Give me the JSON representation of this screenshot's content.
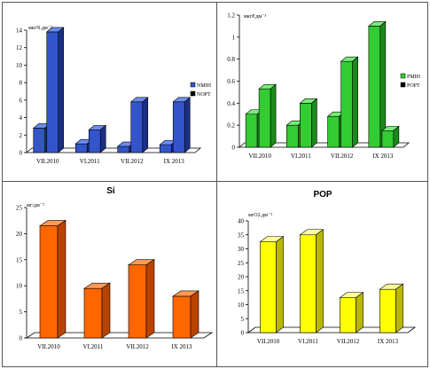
{
  "chart_data": [
    {
      "type": "bar",
      "title": "",
      "unit_label": "мкгN.дм⁻³",
      "categories": [
        "VII.2010",
        "VI.2011",
        "VII.2012",
        "IX 2013"
      ],
      "ylim": [
        0,
        14
      ],
      "yticks": [
        0,
        2,
        4,
        6,
        8,
        10,
        12,
        14
      ],
      "legend_position": "right",
      "series": [
        {
          "name": "NMIH",
          "values": [
            2.8,
            1.0,
            0.7,
            0.9
          ]
        },
        {
          "name": "NOPT",
          "values": [
            13.8,
            2.6,
            5.8,
            5.8
          ]
        }
      ],
      "colors": {
        "front": "#3355cc",
        "top": "#6b8cf0",
        "side": "#1c2f85"
      }
    },
    {
      "type": "bar",
      "title": "",
      "unit_label": "мкгP.дм⁻³",
      "categories": [
        "VII.2010",
        "VI.2011",
        "VII.2012",
        "IX 2013"
      ],
      "ylim": [
        0,
        1.2
      ],
      "yticks": [
        0,
        0.2,
        0.4,
        0.6,
        0.8,
        1,
        1.2
      ],
      "legend_position": "right",
      "series": [
        {
          "name": "PMIH",
          "values": [
            0.3,
            0.2,
            0.28,
            1.1
          ]
        },
        {
          "name": "POPT",
          "values": [
            0.53,
            0.4,
            0.78,
            0.15
          ]
        }
      ],
      "colors": {
        "front": "#33cc33",
        "top": "#77ee77",
        "side": "#1a8a1a"
      }
    },
    {
      "type": "bar",
      "title": "Si",
      "unit_label": "мг/дм⁻³",
      "categories": [
        "VII.2010",
        "VI.2011",
        "VII.2012",
        "IX 2013"
      ],
      "ylim": [
        0,
        25
      ],
      "yticks": [
        0,
        5,
        10,
        15,
        20,
        25
      ],
      "series": [
        {
          "values": [
            21.5,
            9.5,
            14.0,
            8.0
          ]
        }
      ],
      "colors": {
        "front": "#ff6600",
        "top": "#ff9a55",
        "side": "#b84300"
      }
    },
    {
      "type": "bar",
      "title": "POP",
      "unit_label": "мгО2.дм⁻³",
      "categories": [
        "VII.2010",
        "VI.2011",
        "VII.2012",
        "IX 2013"
      ],
      "ylim": [
        0,
        40
      ],
      "yticks": [
        0,
        5,
        10,
        15,
        20,
        25,
        30,
        35,
        40
      ],
      "series": [
        {
          "values": [
            32.5,
            35.0,
            12.5,
            15.5
          ]
        }
      ],
      "colors": {
        "front": "#ffff00",
        "top": "#ffff99",
        "side": "#b8b800"
      }
    }
  ]
}
